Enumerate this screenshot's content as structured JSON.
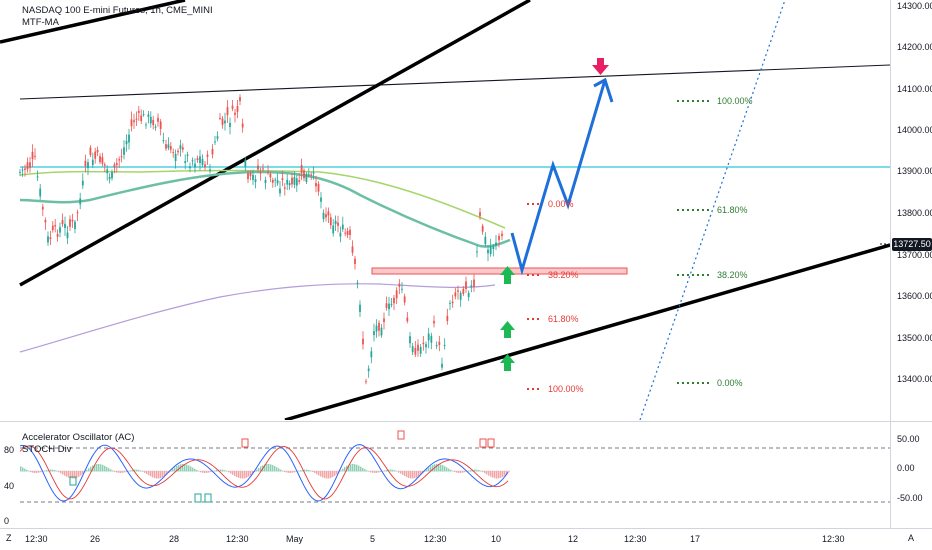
{
  "header": {
    "symbol_title": "NASDAQ 100 E-mini Futures, 1h, CME_MINI",
    "indicator_1": "MTF-MA"
  },
  "oscillator": {
    "title": "Accelerator Oscillator (AC)",
    "subtitle": "STOCH Div",
    "left_labels": [
      "80",
      "40",
      "0"
    ],
    "right_labels": [
      "50.00",
      "0.00",
      "-50.00"
    ]
  },
  "price_scale": {
    "ticks": [
      "14300.00",
      "14200.00",
      "14100.00",
      "14000.00",
      "13900.00",
      "13800.00",
      "13700.00",
      "13600.00",
      "13500.00",
      "13400.00"
    ],
    "current_price": "13727.50"
  },
  "time_axis": {
    "ticks": [
      "12:30",
      "26",
      "28",
      "12:30",
      "May",
      "5",
      "12:30",
      "10",
      "12",
      "12:30",
      "17",
      "12:30"
    ]
  },
  "fib_left": [
    "0.00%",
    "38.20%",
    "61.80%",
    "100.00%"
  ],
  "fib_right": [
    "100.00%",
    "61.80%",
    "38.20%",
    "0.00%"
  ],
  "colors": {
    "bull": "#26a69a",
    "bear": "#ef5350",
    "projection": "#1e6fd9",
    "trendline": "#000000",
    "horizontal_level": "#4dd0e1",
    "ma_light_green": "#a5d66b",
    "ma_teal": "#6cbfa5",
    "ma_purple": "#b39ddb",
    "up_arrow": "#1db954",
    "down_arrow": "#e91e63"
  },
  "icons": {
    "down_marker": "arrow-down-icon",
    "up_marker": "arrow-up-icon"
  },
  "corner": {
    "left": "Z",
    "right": "A"
  }
}
